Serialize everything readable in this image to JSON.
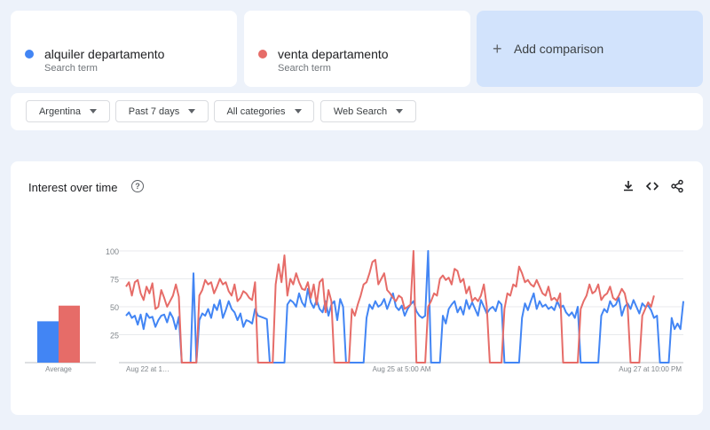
{
  "terms": [
    {
      "name": "alquiler departamento",
      "sub": "Search term",
      "color": "#4285f4"
    },
    {
      "name": "venta departamento",
      "sub": "Search term",
      "color": "#e66c68"
    }
  ],
  "add_comparison": {
    "label": "Add comparison",
    "icon": "plus-icon"
  },
  "filters": [
    {
      "label": "Argentina"
    },
    {
      "label": "Past 7 days"
    },
    {
      "label": "All categories"
    },
    {
      "label": "Web Search"
    }
  ],
  "chart_section": {
    "title": "Interest over time",
    "help": "?",
    "tools": [
      "download-icon",
      "embed-icon",
      "share-icon"
    ]
  },
  "chart_data": {
    "type": "line",
    "title": "Interest over time",
    "ylim": [
      0,
      100
    ],
    "yticks": [
      25,
      50,
      75,
      100
    ],
    "grid": true,
    "x_tick_labels": [
      {
        "index": 0,
        "label": "Aug 22 at 1…"
      },
      {
        "index": 84,
        "label": "Aug 25 at 5:00 AM"
      },
      {
        "index": 168,
        "label": "Aug 27 at 10:00 PM"
      }
    ],
    "average": {
      "label": "Average",
      "values": [
        37,
        51
      ]
    },
    "series": [
      {
        "name": "alquiler departamento",
        "color": "#4285f4",
        "values": [
          42,
          45,
          40,
          42,
          34,
          43,
          30,
          44,
          40,
          41,
          32,
          38,
          42,
          43,
          36,
          45,
          40,
          30,
          41,
          0,
          0,
          0,
          0,
          80,
          0,
          38,
          44,
          42,
          48,
          40,
          52,
          47,
          56,
          40,
          47,
          55,
          48,
          45,
          38,
          44,
          32,
          38,
          37,
          35,
          48,
          42,
          41,
          40,
          39,
          0,
          0,
          0,
          0,
          0,
          0,
          52,
          56,
          54,
          50,
          62,
          54,
          50,
          66,
          54,
          49,
          56,
          48,
          45,
          55,
          42,
          52,
          55,
          38,
          57,
          50,
          0,
          0,
          0,
          0,
          0,
          0,
          0,
          40,
          52,
          48,
          55,
          50,
          52,
          57,
          48,
          55,
          62,
          50,
          47,
          51,
          42,
          48,
          52,
          55,
          46,
          42,
          40,
          42,
          100,
          0,
          0,
          0,
          0,
          42,
          35,
          48,
          52,
          55,
          45,
          50,
          43,
          56,
          48,
          54,
          48,
          42,
          56,
          50,
          44,
          48,
          50,
          46,
          55,
          52,
          0,
          0,
          0,
          0,
          0,
          0,
          40,
          53,
          47,
          55,
          62,
          48,
          55,
          50,
          52,
          48,
          50,
          47,
          55,
          49,
          51,
          45,
          42,
          45,
          40,
          50,
          0,
          0,
          0,
          0,
          0,
          0,
          0,
          42,
          48,
          45,
          55,
          50,
          52,
          58,
          42,
          50,
          53,
          48,
          56,
          50,
          44,
          53,
          50,
          51,
          47,
          40,
          42,
          0,
          0,
          0,
          0,
          40,
          30,
          35,
          30,
          55
        ],
        "label_points": [
          5,
          15,
          25
        ]
      },
      {
        "name": "venta departamento",
        "color": "#e66c68",
        "values": [
          68,
          72,
          60,
          72,
          74,
          62,
          56,
          68,
          62,
          71,
          48,
          50,
          65,
          58,
          50,
          55,
          60,
          70,
          59,
          0,
          0,
          0,
          0,
          0,
          0,
          60,
          65,
          74,
          70,
          72,
          62,
          68,
          75,
          70,
          72,
          64,
          60,
          70,
          55,
          58,
          64,
          62,
          58,
          56,
          72,
          0,
          0,
          0,
          0,
          0,
          0,
          70,
          88,
          72,
          96,
          60,
          75,
          70,
          80,
          72,
          66,
          65,
          72,
          58,
          70,
          52,
          72,
          75,
          45,
          65,
          55,
          0,
          0,
          0,
          0,
          0,
          0,
          48,
          42,
          52,
          60,
          70,
          72,
          80,
          90,
          92,
          70,
          75,
          80,
          65,
          62,
          58,
          55,
          60,
          58,
          48,
          50,
          52,
          100,
          0,
          0,
          0,
          0,
          50,
          55,
          62,
          60,
          75,
          78,
          74,
          76,
          70,
          84,
          82,
          72,
          75,
          62,
          68,
          55,
          58,
          55,
          60,
          70,
          50,
          0,
          0,
          0,
          0,
          0,
          48,
          62,
          60,
          70,
          68,
          86,
          80,
          72,
          74,
          70,
          68,
          74,
          68,
          62,
          60,
          68,
          56,
          58,
          55,
          62,
          0,
          0,
          0,
          0,
          0,
          0,
          48,
          55,
          60,
          70,
          62,
          64,
          70,
          56,
          60,
          62,
          68,
          58,
          56,
          60,
          66,
          62,
          50,
          0,
          0,
          0,
          0,
          42,
          48,
          54,
          50,
          60
        ],
        "label_points": [
          5,
          15,
          25
        ]
      }
    ]
  }
}
